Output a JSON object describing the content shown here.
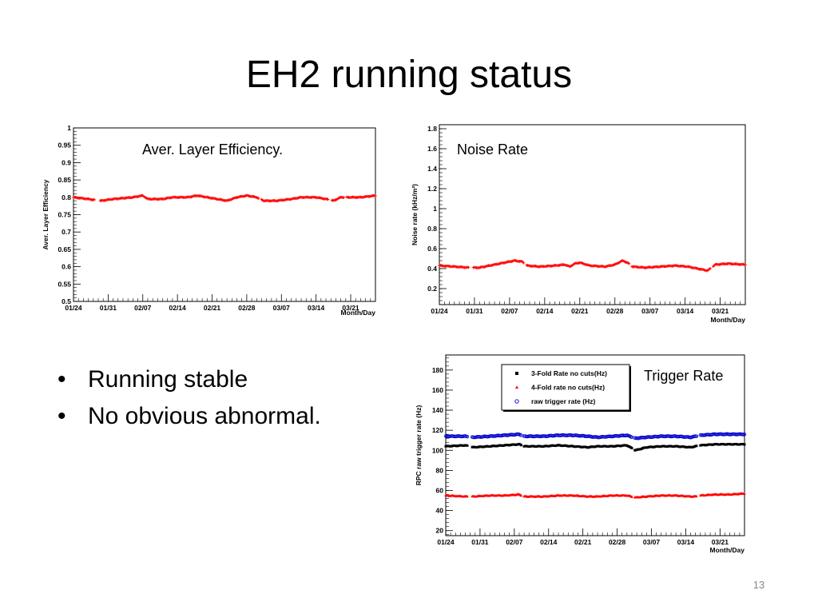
{
  "slide": {
    "title": "EH2 running status",
    "bullets": [
      "Running stable",
      "No obvious abnormal."
    ],
    "page_number": "13"
  },
  "chart_data": [
    {
      "id": "efficiency",
      "type": "scatter",
      "title": "",
      "annotation": "Aver. Layer Efficiency.",
      "xlabel": "Month/Day",
      "ylabel": "Aver. Layer Efficiency",
      "xlim": [
        0,
        61
      ],
      "ylim": [
        0.5,
        1.0
      ],
      "xticks": [
        0,
        7,
        14,
        21,
        28,
        35,
        42,
        49,
        56
      ],
      "xtick_labels": [
        "01/24",
        "01/31",
        "02/07",
        "02/14",
        "02/21",
        "02/28",
        "03/07",
        "03/14",
        "03/21"
      ],
      "yticks": [
        0.5,
        0.55,
        0.6,
        0.65,
        0.7,
        0.75,
        0.8,
        0.85,
        0.9,
        0.95,
        1
      ],
      "ytick_labels": [
        "0.5",
        "0.55",
        "0.6",
        "0.65",
        "0.7",
        "0.75",
        "0.8",
        "0.85",
        "0.9",
        "0.95",
        "1"
      ],
      "grid": false,
      "legend": "none",
      "series": [
        {
          "color": "#ff0000",
          "marker": "cross",
          "gaps": [
            [
              4.3,
              5.3
            ],
            [
              37.5,
              38.0
            ],
            [
              51.6,
              52.1
            ],
            [
              54.8,
              55.2
            ]
          ],
          "anchors": [
            [
              0,
              0.8
            ],
            [
              3,
              0.795
            ],
            [
              5.5,
              0.79
            ],
            [
              8,
              0.795
            ],
            [
              12,
              0.8
            ],
            [
              14,
              0.805
            ],
            [
              15,
              0.795
            ],
            [
              18,
              0.795
            ],
            [
              20,
              0.8
            ],
            [
              23,
              0.8
            ],
            [
              25,
              0.805
            ],
            [
              27,
              0.8
            ],
            [
              29,
              0.795
            ],
            [
              31,
              0.79
            ],
            [
              33,
              0.8
            ],
            [
              35,
              0.805
            ],
            [
              37,
              0.8
            ],
            [
              38.5,
              0.79
            ],
            [
              41,
              0.79
            ],
            [
              44,
              0.795
            ],
            [
              46,
              0.8
            ],
            [
              49,
              0.8
            ],
            [
              51,
              0.795
            ],
            [
              52.5,
              0.79
            ],
            [
              54,
              0.8
            ],
            [
              55.5,
              0.8
            ],
            [
              58,
              0.8
            ],
            [
              61,
              0.805
            ]
          ]
        }
      ]
    },
    {
      "id": "noise",
      "type": "scatter",
      "title": "",
      "annotation": "Noise Rate",
      "xlabel": "Month/Day",
      "ylabel": "Noise rate (kHz/m²)",
      "xlim": [
        0,
        61
      ],
      "ylim": [
        0.04,
        1.84
      ],
      "xticks": [
        0,
        7,
        14,
        21,
        28,
        35,
        42,
        49,
        56
      ],
      "xtick_labels": [
        "01/24",
        "01/31",
        "02/07",
        "02/14",
        "02/21",
        "02/28",
        "03/07",
        "03/14",
        "03/21"
      ],
      "yticks": [
        0.2,
        0.4,
        0.6,
        0.8,
        1.0,
        1.2,
        1.4,
        1.6,
        1.8
      ],
      "ytick_labels": [
        "0.2",
        "0.4",
        "0.6",
        "0.8",
        "1",
        "1.2",
        "1.4",
        "1.6",
        "1.8"
      ],
      "grid": false,
      "legend": "none",
      "series": [
        {
          "color": "#ff0000",
          "marker": "cross",
          "gaps": [
            [
              6.0,
              6.8
            ],
            [
              16.9,
              17.3
            ],
            [
              37.8,
              38.3
            ],
            [
              54.1,
              54.6
            ]
          ],
          "anchors": [
            [
              0,
              0.43
            ],
            [
              3,
              0.42
            ],
            [
              6,
              0.41
            ],
            [
              8,
              0.41
            ],
            [
              11,
              0.44
            ],
            [
              13,
              0.46
            ],
            [
              15,
              0.48
            ],
            [
              16.5,
              0.47
            ],
            [
              17.5,
              0.43
            ],
            [
              20,
              0.42
            ],
            [
              23,
              0.43
            ],
            [
              25,
              0.44
            ],
            [
              26,
              0.42
            ],
            [
              27,
              0.45
            ],
            [
              28,
              0.46
            ],
            [
              30,
              0.43
            ],
            [
              33,
              0.42
            ],
            [
              35,
              0.44
            ],
            [
              36.5,
              0.48
            ],
            [
              37.5,
              0.46
            ],
            [
              38.5,
              0.42
            ],
            [
              41,
              0.41
            ],
            [
              44,
              0.42
            ],
            [
              47,
              0.43
            ],
            [
              49.5,
              0.42
            ],
            [
              51.5,
              0.4
            ],
            [
              53.5,
              0.38
            ],
            [
              55,
              0.44
            ],
            [
              57.5,
              0.45
            ],
            [
              61,
              0.44
            ]
          ]
        }
      ]
    },
    {
      "id": "trigger",
      "type": "scatter",
      "title": "",
      "annotation": "Trigger Rate",
      "xlabel": "Month/Day",
      "ylabel": "RPC raw trigger rate (Hz)",
      "xlim": [
        0,
        61
      ],
      "ylim": [
        15,
        195
      ],
      "xticks": [
        0,
        7,
        14,
        21,
        28,
        35,
        42,
        49,
        56
      ],
      "xtick_labels": [
        "01/24",
        "01/31",
        "02/07",
        "02/14",
        "02/21",
        "02/28",
        "03/07",
        "03/14",
        "03/21"
      ],
      "yticks": [
        20,
        40,
        60,
        80,
        100,
        120,
        140,
        160,
        180
      ],
      "ytick_labels": [
        "20",
        "40",
        "60",
        "80",
        "100",
        "120",
        "140",
        "160",
        "180"
      ],
      "grid": false,
      "legend": "top-right",
      "series": [
        {
          "name": "3-Fold Rate no cuts(Hz)",
          "color": "#000000",
          "marker": "square",
          "gaps": [
            [
              4.6,
              5.3
            ],
            [
              15.4,
              15.9
            ],
            [
              38.0,
              38.5
            ],
            [
              51.4,
              51.9
            ]
          ],
          "anchors": [
            [
              0,
              104
            ],
            [
              4,
              105
            ],
            [
              5.5,
              103
            ],
            [
              9,
              104
            ],
            [
              12,
              105
            ],
            [
              15,
              106
            ],
            [
              16,
              104
            ],
            [
              20,
              104
            ],
            [
              23,
              105
            ],
            [
              26,
              104
            ],
            [
              29,
              103
            ],
            [
              31,
              104
            ],
            [
              34,
              104
            ],
            [
              37,
              105
            ],
            [
              38.7,
              100
            ],
            [
              41,
              103
            ],
            [
              44,
              104
            ],
            [
              47,
              104
            ],
            [
              50,
              103
            ],
            [
              51,
              104
            ],
            [
              52,
              105
            ],
            [
              55,
              106
            ],
            [
              58,
              106
            ],
            [
              61,
              106
            ]
          ]
        },
        {
          "name": "4-Fold rate no cuts(Hz)",
          "color": "#ff0000",
          "marker": "triangle",
          "gaps": [
            [
              4.6,
              5.3
            ],
            [
              15.4,
              15.9
            ],
            [
              38.0,
              38.5
            ],
            [
              51.4,
              51.9
            ]
          ],
          "anchors": [
            [
              0,
              55
            ],
            [
              4,
              54
            ],
            [
              5.5,
              54
            ],
            [
              9,
              55
            ],
            [
              12,
              55
            ],
            [
              15,
              56
            ],
            [
              16,
              54
            ],
            [
              20,
              54
            ],
            [
              23,
              55
            ],
            [
              26,
              55
            ],
            [
              29,
              54
            ],
            [
              31,
              54
            ],
            [
              34,
              55
            ],
            [
              37,
              55
            ],
            [
              38.7,
              53
            ],
            [
              41,
              54
            ],
            [
              44,
              55
            ],
            [
              47,
              55
            ],
            [
              50,
              54
            ],
            [
              51,
              54
            ],
            [
              52,
              55
            ],
            [
              55,
              56
            ],
            [
              58,
              56
            ],
            [
              61,
              57
            ]
          ]
        },
        {
          "name": "raw trigger rate (Hz)",
          "color": "#0000cc",
          "marker": "circle",
          "gaps": [
            [
              4.6,
              5.3
            ],
            [
              15.4,
              15.9
            ],
            [
              38.0,
              38.5
            ],
            [
              51.4,
              51.9
            ]
          ],
          "anchors": [
            [
              0,
              114
            ],
            [
              4,
              114
            ],
            [
              5.5,
              113
            ],
            [
              9,
              114
            ],
            [
              12,
              115
            ],
            [
              15,
              116
            ],
            [
              16,
              114
            ],
            [
              20,
              114
            ],
            [
              23,
              115
            ],
            [
              26,
              115
            ],
            [
              29,
              114
            ],
            [
              31,
              113
            ],
            [
              34,
              114
            ],
            [
              37,
              115
            ],
            [
              38.7,
              112
            ],
            [
              41,
              113
            ],
            [
              44,
              114
            ],
            [
              47,
              114
            ],
            [
              50,
              113
            ],
            [
              51,
              114
            ],
            [
              52,
              115
            ],
            [
              55,
              116
            ],
            [
              58,
              116
            ],
            [
              61,
              116
            ]
          ]
        }
      ]
    }
  ]
}
